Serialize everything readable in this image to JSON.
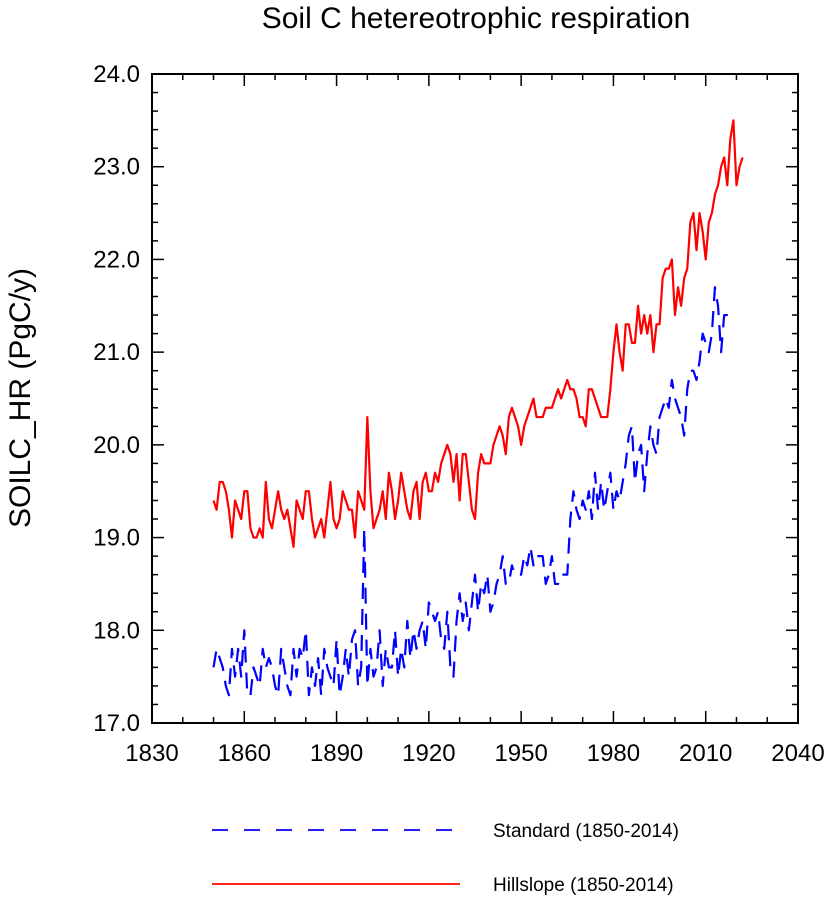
{
  "chart_data": {
    "type": "line",
    "title": "Soil C hetereotrophic respiration",
    "xlabel": "",
    "ylabel": "SOILC_HR  (PgC/y)",
    "xlim": [
      1830,
      2040
    ],
    "ylim": [
      17.0,
      24.0
    ],
    "x_ticks": [
      "1830",
      "1860",
      "1890",
      "1920",
      "1950",
      "1980",
      "2010",
      "2040"
    ],
    "y_ticks": [
      "17.0",
      "18.0",
      "19.0",
      "20.0",
      "21.0",
      "22.0",
      "23.0",
      "24.0"
    ],
    "x_start": 1850,
    "grid": false,
    "legend_position": "bottom",
    "series": [
      {
        "name": "Standard (1850-2014)",
        "color": "#0000ff",
        "style": "dashed",
        "values": [
          17.6,
          17.8,
          17.7,
          17.6,
          17.4,
          17.3,
          17.8,
          17.5,
          17.8,
          17.5,
          18.0,
          17.3,
          17.3,
          17.6,
          17.5,
          17.4,
          17.8,
          17.6,
          17.7,
          17.6,
          17.4,
          17.3,
          17.8,
          17.6,
          17.4,
          17.3,
          17.8,
          17.5,
          17.8,
          17.7,
          18.0,
          17.3,
          17.6,
          17.4,
          17.7,
          17.3,
          17.8,
          17.6,
          17.5,
          17.4,
          17.9,
          17.3,
          17.5,
          17.8,
          17.5,
          17.9,
          18.0,
          17.4,
          17.6,
          19.1,
          17.4,
          17.8,
          17.5,
          17.6,
          18.0,
          17.4,
          17.8,
          17.6,
          17.6,
          18.0,
          17.5,
          17.8,
          17.6,
          18.1,
          17.7,
          18.0,
          17.8,
          18.0,
          18.1,
          17.8,
          18.3,
          18.2,
          18.1,
          18.2,
          17.9,
          17.8,
          18.2,
          17.6,
          17.5,
          18.1,
          18.4,
          18.1,
          18.3,
          18.0,
          18.3,
          18.6,
          18.2,
          18.5,
          18.4,
          18.6,
          18.2,
          18.3,
          18.5,
          18.6,
          18.8,
          18.5,
          18.5,
          18.7,
          18.6,
          18.6,
          18.6,
          18.8,
          18.7,
          18.9,
          18.7,
          18.8,
          18.8,
          18.8,
          18.5,
          18.6,
          18.8,
          18.5,
          18.5,
          18.6,
          18.6,
          18.6,
          19.2,
          19.5,
          19.3,
          19.2,
          19.4,
          19.3,
          19.5,
          19.2,
          19.7,
          19.3,
          19.6,
          19.3,
          19.5,
          19.7,
          19.3,
          19.5,
          19.4,
          19.6,
          19.8,
          20.1,
          20.2,
          19.6,
          19.9,
          20.0,
          19.5,
          19.9,
          20.2,
          20.0,
          19.9,
          20.3,
          20.4,
          20.5,
          20.4,
          20.7,
          20.5,
          20.4,
          20.3,
          20.1,
          20.6,
          20.8,
          20.8,
          20.7,
          20.9,
          21.2,
          21.1,
          21.0,
          21.2,
          21.7,
          21.5,
          21.0,
          21.4,
          21.4,
          21.4
        ],
        "display_values": [
          17.6,
          17.8,
          17.7,
          17.6,
          17.4,
          17.3,
          17.8,
          17.5,
          17.8,
          17.5,
          18.0,
          17.3,
          17.3,
          17.6,
          17.5,
          17.4,
          17.8,
          17.6,
          17.7,
          17.6,
          17.4,
          17.3,
          17.8,
          17.6,
          17.4,
          17.3,
          17.8,
          17.5,
          17.8,
          17.7,
          18.0,
          17.3,
          17.6,
          17.4,
          17.7,
          17.3,
          17.8,
          17.6,
          17.5,
          17.4,
          17.9,
          17.3,
          17.5,
          17.8,
          17.5,
          17.9,
          18.0,
          17.4,
          17.6,
          19.1,
          17.4,
          17.8,
          17.5,
          17.6,
          18.0,
          17.4,
          17.8,
          17.6,
          17.6,
          18.0,
          17.5,
          17.8,
          17.6,
          18.1,
          17.7,
          18.0,
          17.8,
          18.0,
          18.1,
          17.8,
          18.3,
          18.2,
          18.1,
          18.2,
          17.9,
          17.8,
          18.2,
          17.6,
          17.5,
          18.1,
          18.4,
          18.1,
          18.3,
          18.0,
          18.3,
          18.6,
          18.2,
          18.5,
          18.4,
          18.6,
          18.2,
          18.3,
          18.5,
          18.6,
          18.8,
          18.5,
          18.5,
          18.7,
          18.6,
          18.6,
          18.6,
          18.8,
          18.7,
          18.9,
          18.7,
          18.8,
          18.8,
          18.8,
          18.5,
          18.6,
          18.8,
          18.5,
          18.5,
          18.6,
          18.6,
          18.6,
          19.2,
          19.5,
          19.3,
          19.2,
          19.4,
          19.3,
          19.5,
          19.2,
          19.7,
          19.3,
          19.6,
          19.3,
          19.5,
          19.7,
          19.3,
          19.5,
          19.4,
          19.6,
          19.8,
          20.1,
          20.2,
          19.6,
          19.9,
          20.0,
          19.5,
          19.9,
          20.2,
          20.0,
          19.9,
          20.3,
          20.4,
          20.5,
          20.4,
          20.7,
          20.5,
          20.4,
          20.3,
          20.1,
          20.6,
          20.8,
          20.8,
          20.7,
          20.9,
          21.2,
          21.1,
          21.0,
          21.2,
          21.7,
          21.5,
          21.0,
          21.4,
          21.4,
          21.4
        ]
      },
      {
        "name": "Hillslope (1850-2014)",
        "color": "#ff0000",
        "style": "solid",
        "values": [
          19.4,
          19.3,
          19.6,
          19.6,
          19.5,
          19.3,
          19.0,
          19.4,
          19.3,
          19.2,
          19.5,
          19.5,
          19.1,
          19.0,
          19.0,
          19.1,
          19.0,
          19.6,
          19.2,
          19.1,
          19.3,
          19.5,
          19.3,
          19.2,
          19.3,
          19.1,
          18.9,
          19.4,
          19.3,
          19.2,
          19.5,
          19.5,
          19.2,
          19.0,
          19.1,
          19.2,
          19.0,
          19.3,
          19.6,
          19.2,
          19.1,
          19.2,
          19.5,
          19.4,
          19.3,
          19.3,
          19.0,
          19.5,
          19.4,
          19.3,
          20.3,
          19.5,
          19.1,
          19.2,
          19.3,
          19.5,
          19.2,
          19.7,
          19.5,
          19.2,
          19.4,
          19.7,
          19.5,
          19.3,
          19.2,
          19.5,
          19.6,
          19.2,
          19.6,
          19.7,
          19.5,
          19.5,
          19.7,
          19.6,
          19.8,
          19.9,
          20.0,
          19.9,
          19.6,
          19.9,
          19.4,
          19.9,
          19.9,
          19.6,
          19.3,
          19.2,
          19.7,
          19.9,
          19.8,
          19.8,
          19.8,
          20.0,
          20.1,
          20.2,
          20.1,
          19.9,
          20.3,
          20.4,
          20.3,
          20.2,
          20.0,
          20.2,
          20.3,
          20.4,
          20.5,
          20.3,
          20.3,
          20.3,
          20.4,
          20.4,
          20.4,
          20.5,
          20.6,
          20.5,
          20.6,
          20.7,
          20.6,
          20.6,
          20.5,
          20.3,
          20.3,
          20.2,
          20.6,
          20.6,
          20.5,
          20.4,
          20.3,
          20.3,
          20.3,
          20.6,
          21.0,
          21.3,
          21.0,
          20.8,
          21.3,
          21.3,
          21.1,
          21.1,
          21.5,
          21.2,
          21.4,
          21.2,
          21.4,
          21.0,
          21.3,
          21.3,
          21.8,
          21.9,
          21.9,
          22.0,
          21.4,
          21.7,
          21.5,
          21.8,
          21.9,
          22.4,
          22.5,
          22.1,
          22.5,
          22.3,
          22.0,
          22.4,
          22.5,
          22.7,
          22.8,
          23.0,
          23.1,
          22.8,
          23.3,
          23.5,
          22.8,
          23.0,
          23.1
        ],
        "display_values": [
          19.4,
          19.3,
          19.6,
          19.6,
          19.5,
          19.3,
          19.0,
          19.4,
          19.3,
          19.2,
          19.5,
          19.5,
          19.1,
          19.0,
          19.0,
          19.1,
          19.0,
          19.6,
          19.2,
          19.1,
          19.3,
          19.5,
          19.3,
          19.2,
          19.3,
          19.1,
          18.9,
          19.4,
          19.3,
          19.2,
          19.5,
          19.5,
          19.2,
          19.0,
          19.1,
          19.2,
          19.0,
          19.3,
          19.6,
          19.2,
          19.1,
          19.2,
          19.5,
          19.4,
          19.3,
          19.3,
          19.0,
          19.5,
          19.4,
          19.3,
          20.3,
          19.5,
          19.1,
          19.2,
          19.3,
          19.5,
          19.2,
          19.7,
          19.5,
          19.2,
          19.4,
          19.7,
          19.5,
          19.3,
          19.2,
          19.5,
          19.6,
          19.2,
          19.6,
          19.7,
          19.5,
          19.5,
          19.7,
          19.6,
          19.8,
          19.9,
          20.0,
          19.9,
          19.6,
          19.9,
          19.4,
          19.9,
          19.9,
          19.6,
          19.3,
          19.2,
          19.7,
          19.9,
          19.8,
          19.8,
          19.8,
          20.0,
          20.1,
          20.2,
          20.1,
          19.9,
          20.3,
          20.4,
          20.3,
          20.2,
          20.0,
          20.2,
          20.3,
          20.4,
          20.5,
          20.3,
          20.3,
          20.3,
          20.4,
          20.4,
          20.4,
          20.5,
          20.6,
          20.5,
          20.6,
          20.7,
          20.6,
          20.6,
          20.5,
          20.3,
          20.3,
          20.2,
          20.6,
          20.6,
          20.5,
          20.4,
          20.3,
          20.3,
          20.3,
          20.6,
          21.0,
          21.3,
          21.0,
          20.8,
          21.3,
          21.3,
          21.1,
          21.1,
          21.5,
          21.2,
          21.4,
          21.2,
          21.4,
          21.0,
          21.3,
          21.3,
          21.8,
          21.9,
          21.9,
          22.0,
          21.4,
          21.7,
          21.5,
          21.8,
          21.9,
          22.4,
          22.5,
          22.1,
          22.5,
          22.3,
          22.0,
          22.4,
          22.5,
          22.7,
          22.8,
          23.0,
          23.1,
          22.8,
          23.3,
          23.5,
          22.8,
          23.0,
          23.1
        ]
      }
    ]
  }
}
